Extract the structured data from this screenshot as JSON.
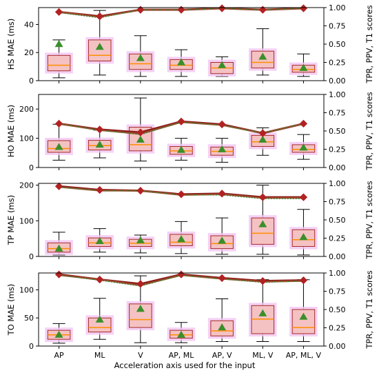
{
  "chart_data": {
    "type": "box",
    "x_label": "Acceleration axis used for the input",
    "categories": [
      "AP",
      "ML",
      "V",
      "AP, ML",
      "AP, V",
      "ML, V",
      "AP, ML, V"
    ],
    "right_axis_label": "TPR, PPV, T1 scores",
    "right_ylim": [
      0,
      1
    ],
    "right_ticks": [
      "0.00",
      "0.25",
      "0.50",
      "0.75",
      "1.00"
    ],
    "colors": {
      "box_fill": "#f4c2c2",
      "box_edge": "#a52a2a",
      "box_glow": "#f3c6f3",
      "median": "#ff8c00",
      "mean_marker": "#3a8f2a",
      "score_line": "#8b1a1a",
      "score_marker": "#b22222"
    },
    "panels": [
      {
        "ylabel": "HS MAE (ms)",
        "ylim": [
          0,
          52
        ],
        "yticks": [
          0,
          20,
          40
        ],
        "boxes": [
          {
            "whislo": 2,
            "q1": 7,
            "med": 11,
            "q3": 18,
            "whishi": 29,
            "mean": 26
          },
          {
            "whislo": 4,
            "q1": 14,
            "med": 18,
            "q3": 29,
            "whishi": 50,
            "mean": 24
          },
          {
            "whislo": 3,
            "q1": 8,
            "med": 12,
            "q3": 19,
            "whishi": 32,
            "mean": 16
          },
          {
            "whislo": 3,
            "q1": 8,
            "med": 11,
            "q3": 15,
            "whishi": 22,
            "mean": 13
          },
          {
            "whislo": 3,
            "q1": 5,
            "med": 9,
            "q3": 13,
            "whishi": 17,
            "mean": 11
          },
          {
            "whislo": 4,
            "q1": 9,
            "med": 13,
            "q3": 21,
            "whishi": 37,
            "mean": 17
          },
          {
            "whislo": 3,
            "q1": 6,
            "med": 8,
            "q3": 11,
            "whishi": 19,
            "mean": 9
          }
        ],
        "scores": [
          [
            0.94,
            0.94,
            0.93
          ],
          [
            0.88,
            0.87,
            0.86
          ],
          [
            0.97,
            0.97,
            0.97
          ],
          [
            0.97,
            0.97,
            0.97
          ],
          [
            0.99,
            0.99,
            0.99
          ],
          [
            0.97,
            0.97,
            0.97
          ],
          [
            0.99,
            0.99,
            0.99
          ]
        ]
      },
      {
        "ylabel": "HO MAE (ms)",
        "ylim": [
          0,
          250
        ],
        "yticks": [
          0,
          100,
          200
        ],
        "boxes": [
          {
            "whislo": 25,
            "q1": 52,
            "med": 65,
            "q3": 92,
            "whishi": 148,
            "mean": 70
          },
          {
            "whislo": 33,
            "q1": 60,
            "med": 75,
            "q3": 93,
            "whishi": 128,
            "mean": 78
          },
          {
            "whislo": 22,
            "q1": 57,
            "med": 78,
            "q3": 138,
            "whishi": 238,
            "mean": 95
          },
          {
            "whislo": 25,
            "q1": 45,
            "med": 57,
            "q3": 72,
            "whishi": 100,
            "mean": 60
          },
          {
            "whislo": 18,
            "q1": 42,
            "med": 55,
            "q3": 70,
            "whishi": 100,
            "mean": 62
          },
          {
            "whislo": 42,
            "q1": 72,
            "med": 88,
            "q3": 110,
            "whishi": 136,
            "mean": 95
          },
          {
            "whislo": 28,
            "q1": 52,
            "med": 62,
            "q3": 78,
            "whishi": 113,
            "mean": 68
          }
        ],
        "scores": [
          [
            0.6,
            0.6,
            0.6
          ],
          [
            0.52,
            0.51,
            0.51
          ],
          [
            0.48,
            0.46,
            0.45
          ],
          [
            0.63,
            0.62,
            0.62
          ],
          [
            0.59,
            0.58,
            0.58
          ],
          [
            0.47,
            0.47,
            0.47
          ],
          [
            0.6,
            0.6,
            0.6
          ]
        ]
      },
      {
        "ylabel": "TP MAE (ms)",
        "ylim": [
          0,
          205
        ],
        "yticks": [
          0,
          100,
          200
        ],
        "boxes": [
          {
            "whislo": 4,
            "q1": 12,
            "med": 22,
            "q3": 38,
            "whishi": 68,
            "mean": 22
          },
          {
            "whislo": 12,
            "q1": 28,
            "med": 38,
            "q3": 52,
            "whishi": 78,
            "mean": 43
          },
          {
            "whislo": 10,
            "q1": 28,
            "med": 37,
            "q3": 48,
            "whishi": 60,
            "mean": 45
          },
          {
            "whislo": 8,
            "q1": 30,
            "med": 40,
            "q3": 62,
            "whishi": 98,
            "mean": 48
          },
          {
            "whislo": 6,
            "q1": 22,
            "med": 36,
            "q3": 58,
            "whishi": 108,
            "mean": 44
          },
          {
            "whislo": 6,
            "q1": 34,
            "med": 65,
            "q3": 108,
            "whishi": 200,
            "mean": 90
          },
          {
            "whislo": 4,
            "q1": 28,
            "med": 47,
            "q3": 75,
            "whishi": 132,
            "mean": 54
          }
        ],
        "scores": [
          [
            0.96,
            0.95,
            0.95
          ],
          [
            0.91,
            0.9,
            0.9
          ],
          [
            0.9,
            0.9,
            0.9
          ],
          [
            0.85,
            0.84,
            0.84
          ],
          [
            0.86,
            0.85,
            0.84
          ],
          [
            0.81,
            0.8,
            0.79
          ],
          [
            0.81,
            0.8,
            0.79
          ]
        ]
      },
      {
        "ylabel": "TO MAE (ms)",
        "ylim": [
          0,
          130
        ],
        "yticks": [
          0,
          50,
          100
        ],
        "boxes": [
          {
            "whislo": 5,
            "q1": 12,
            "med": 20,
            "q3": 28,
            "whishi": 40,
            "mean": 20
          },
          {
            "whislo": 12,
            "q1": 25,
            "med": 33,
            "q3": 50,
            "whishi": 85,
            "mean": 47
          },
          {
            "whislo": 6,
            "q1": 33,
            "med": 47,
            "q3": 75,
            "whishi": 125,
            "mean": 66
          },
          {
            "whislo": 6,
            "q1": 14,
            "med": 20,
            "q3": 28,
            "whishi": 42,
            "mean": 20
          },
          {
            "whislo": 8,
            "q1": 18,
            "med": 27,
            "q3": 45,
            "whishi": 84,
            "mean": 33
          },
          {
            "whislo": 8,
            "q1": 22,
            "med": 48,
            "q3": 72,
            "whishi": 118,
            "mean": 58
          },
          {
            "whislo": 8,
            "q1": 22,
            "med": 33,
            "q3": 65,
            "whishi": 118,
            "mean": 52
          }
        ],
        "scores": [
          [
            0.98,
            0.97,
            0.97
          ],
          [
            0.91,
            0.91,
            0.9
          ],
          [
            0.85,
            0.83,
            0.82
          ],
          [
            0.98,
            0.97,
            0.97
          ],
          [
            0.93,
            0.92,
            0.92
          ],
          [
            0.89,
            0.88,
            0.87
          ],
          [
            0.9,
            0.89,
            0.89
          ]
        ]
      }
    ]
  }
}
